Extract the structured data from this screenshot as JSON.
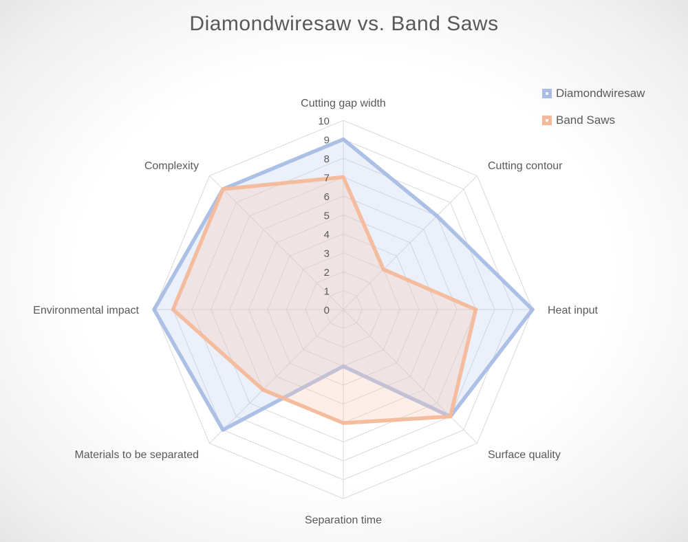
{
  "chart_data": {
    "type": "radar",
    "title": "Diamondwiresaw vs. Band Saws",
    "categories": [
      "Cutting gap width",
      "Cutting contour",
      "Heat input",
      "Surface quality",
      "Separation time",
      "Materials to be separated",
      "Environmental impact",
      "Complexity"
    ],
    "series": [
      {
        "name": "Diamondwiresaw",
        "values": [
          9,
          7,
          10,
          8,
          3,
          9,
          10,
          9
        ],
        "color": "#a9bde5"
      },
      {
        "name": "Band Saws",
        "values": [
          7,
          3,
          7,
          8,
          6,
          6,
          9,
          9
        ],
        "color": "#f4b99a"
      }
    ],
    "rlim": [
      0,
      10
    ],
    "ticks": [
      "0",
      "1",
      "2",
      "3",
      "4",
      "5",
      "6",
      "7",
      "8",
      "9",
      "10"
    ],
    "legend_position": "top-right",
    "grid": true
  }
}
